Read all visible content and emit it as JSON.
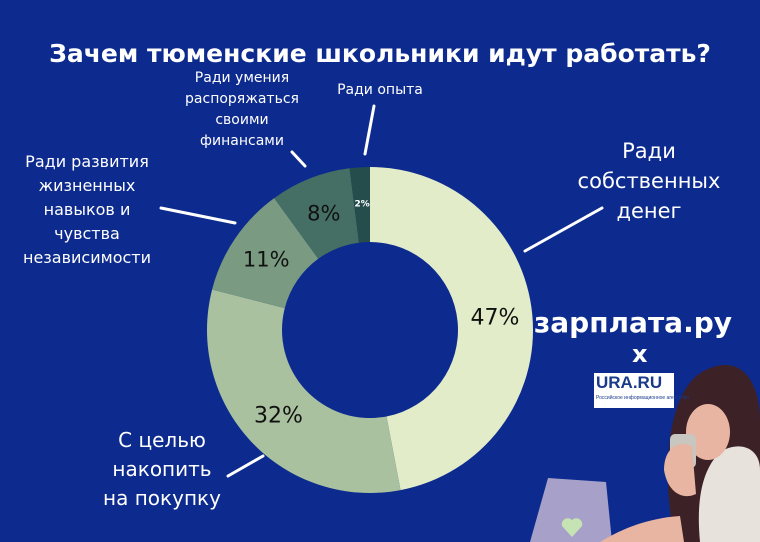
{
  "chart_data": {
    "type": "pie",
    "title": "Зачем тюменские школьники идут работать?",
    "categories": [
      "Ради собственных денег",
      "С целью накопить на покупку",
      "Ради развития жизненных навыков и чувства независимости",
      "Ради умения распоряжаться своими финансами",
      "Ради опыта"
    ],
    "values": [
      47,
      32,
      11,
      8,
      2
    ],
    "value_labels": [
      "47%",
      "32%",
      "11%",
      "8%",
      "2%"
    ],
    "colors": [
      "#e2ecc9",
      "#a9c19f",
      "#7a9b82",
      "#456e64",
      "#244d4c"
    ],
    "donut": true
  },
  "labels": {
    "own_money": [
      "Ради",
      "собственных",
      "денег"
    ],
    "save_for_purchase": [
      "С целью",
      "накопить",
      "на покупку"
    ],
    "life_skills": [
      "Ради развития",
      "жизненных",
      "навыков и",
      "чувства",
      "независимости"
    ],
    "finances": [
      "Ради умения",
      "распоряжаться",
      "своими",
      "финансами"
    ],
    "experience": [
      "Ради опыта"
    ]
  },
  "branding": {
    "zarplata": "зарплата.ру",
    "times": "x",
    "ura": "URA.RU",
    "ura_sub": "Российское информационное агентство"
  },
  "colors": {
    "background": "#0d2b8e",
    "text": "#ffffff"
  }
}
